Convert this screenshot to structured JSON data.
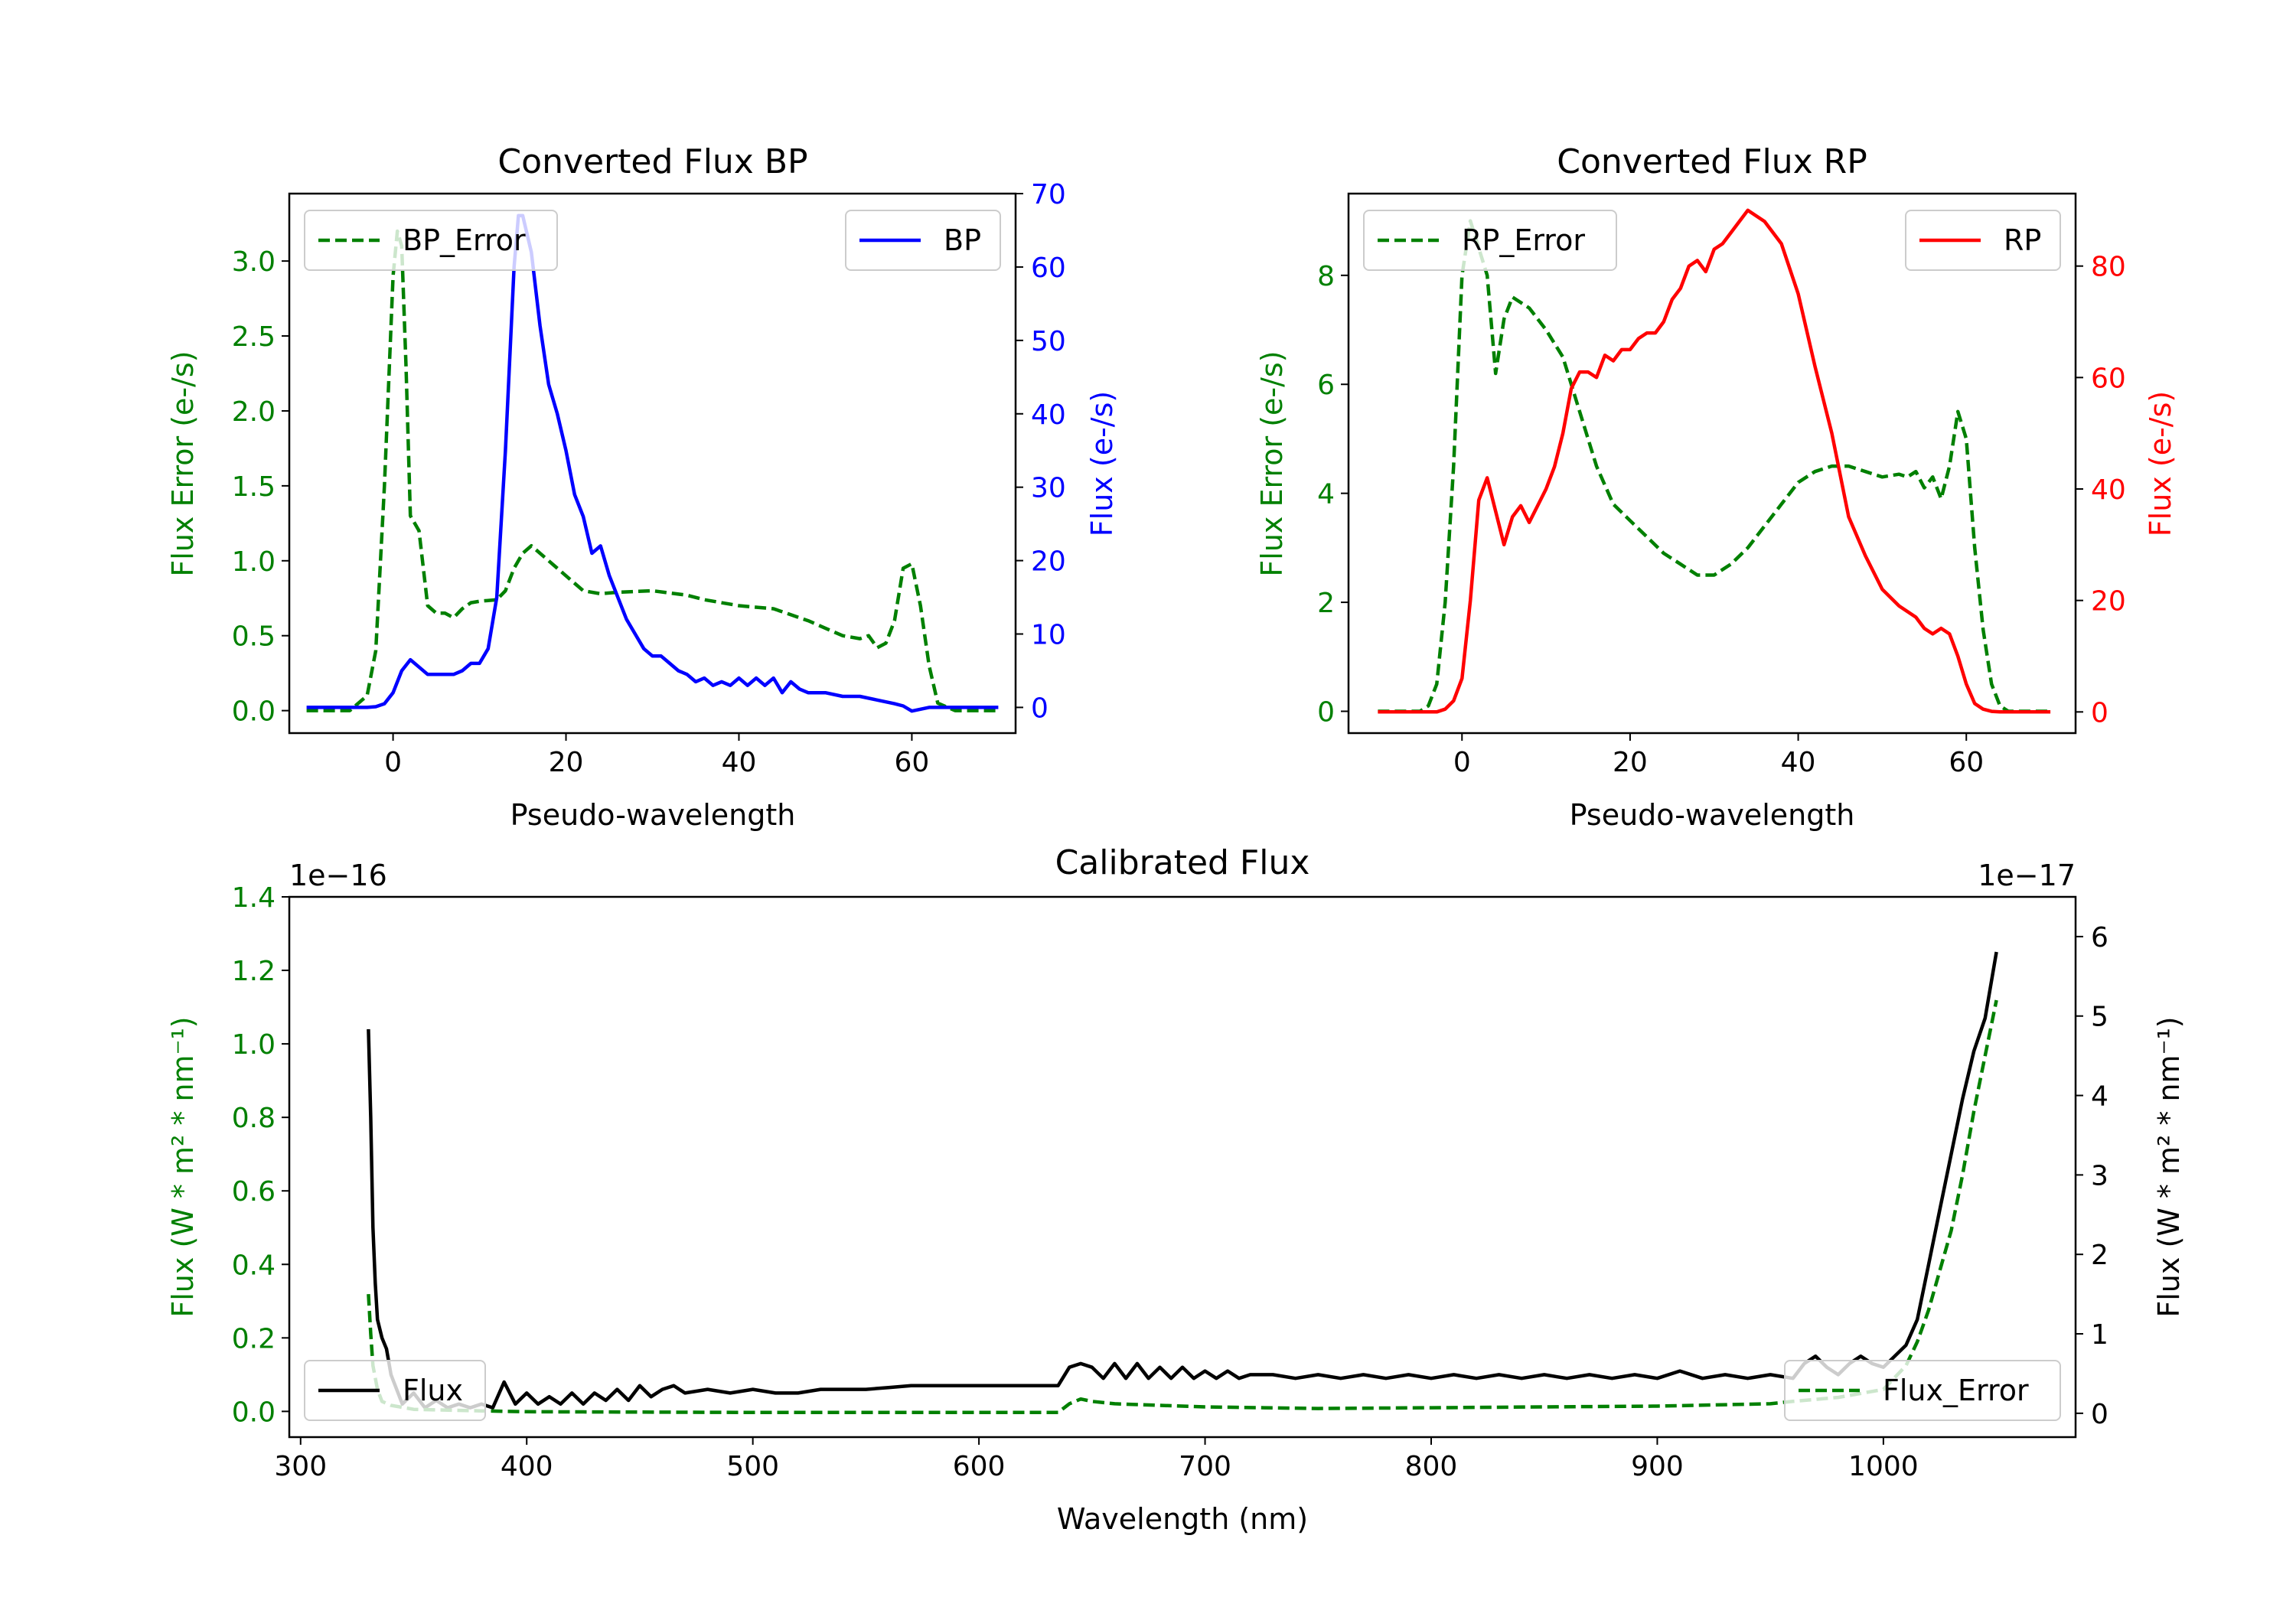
{
  "chart_data": [
    {
      "type": "line",
      "title": "Converted Flux BP",
      "xlabel": "Pseudo-wavelength",
      "ylabel_left": "Flux Error (e-/s)",
      "ylabel_right": "Flux (e-/s)",
      "xlim": [
        -12,
        72
      ],
      "ylim_left": [
        -0.15,
        3.45
      ],
      "ylim_right": [
        -3.5,
        70
      ],
      "xticks": [
        0,
        20,
        40,
        60
      ],
      "yticks_left": [
        0.0,
        0.5,
        1.0,
        1.5,
        2.0,
        2.5,
        3.0
      ],
      "yticks_right": [
        0,
        10,
        20,
        30,
        40,
        50,
        60,
        70
      ],
      "left_color": "#008000",
      "right_color": "#0000ff",
      "legend_left": {
        "label": "BP_Error",
        "position": "upper left"
      },
      "legend_right": {
        "label": "BP",
        "position": "upper right"
      },
      "series": [
        {
          "name": "BP_Error",
          "axis": "left",
          "style": "dashed",
          "color": "#008000",
          "x": [
            -10,
            -5,
            -3,
            -2,
            -1,
            0,
            0.5,
            1,
            1.5,
            2,
            3,
            4,
            5,
            6,
            7,
            8,
            9,
            10,
            12,
            13,
            14,
            15,
            16,
            18,
            20,
            22,
            24,
            26,
            30,
            34,
            36,
            40,
            44,
            48,
            52,
            54,
            55,
            56,
            57,
            58,
            59,
            60,
            61,
            62,
            63,
            65,
            70
          ],
          "y": [
            0.0,
            0.0,
            0.1,
            0.4,
            1.5,
            2.9,
            3.2,
            3.1,
            2.3,
            1.3,
            1.2,
            0.7,
            0.65,
            0.65,
            0.62,
            0.68,
            0.72,
            0.73,
            0.74,
            0.8,
            0.95,
            1.05,
            1.1,
            1.0,
            0.9,
            0.8,
            0.78,
            0.79,
            0.8,
            0.77,
            0.74,
            0.7,
            0.68,
            0.6,
            0.5,
            0.48,
            0.5,
            0.42,
            0.45,
            0.6,
            0.95,
            0.98,
            0.7,
            0.3,
            0.05,
            0.0,
            0.0
          ]
        },
        {
          "name": "BP",
          "axis": "right",
          "style": "solid",
          "color": "#0000ff",
          "x": [
            -10,
            -5,
            -3,
            -2,
            -1,
            0,
            1,
            2,
            3,
            4,
            5,
            6,
            7,
            8,
            9,
            10,
            11,
            12,
            13,
            14,
            14.5,
            15,
            16,
            17,
            18,
            19,
            20,
            21,
            22,
            23,
            24,
            25,
            26,
            27,
            28,
            29,
            30,
            31,
            32,
            33,
            34,
            35,
            36,
            37,
            38,
            39,
            40,
            41,
            42,
            43,
            44,
            45,
            46,
            47,
            48,
            50,
            52,
            54,
            56,
            58,
            59,
            60,
            62,
            65,
            70
          ],
          "y": [
            0.0,
            0.0,
            0.0,
            0.1,
            0.5,
            2.0,
            5.0,
            6.5,
            5.5,
            4.5,
            4.5,
            4.5,
            4.5,
            5.0,
            6.0,
            6.0,
            8.0,
            15.0,
            35.0,
            60.0,
            67.0,
            67.0,
            62.0,
            52.0,
            44.0,
            40.0,
            35.0,
            29.0,
            26.0,
            21.0,
            22.0,
            18.0,
            15.0,
            12.0,
            10.0,
            8.0,
            7.0,
            7.0,
            6.0,
            5.0,
            4.5,
            3.5,
            4.0,
            3.0,
            3.5,
            3.0,
            4.0,
            3.0,
            4.0,
            3.0,
            4.0,
            2.0,
            3.5,
            2.5,
            2.0,
            2.0,
            1.5,
            1.5,
            1.0,
            0.5,
            0.2,
            -0.5,
            0.0,
            0.0,
            0.0
          ]
        }
      ]
    },
    {
      "type": "line",
      "title": "Converted Flux RP",
      "xlabel": "Pseudo-wavelength",
      "ylabel_left": "Flux Error (e-/s)",
      "ylabel_right": "Flux (e-/s)",
      "xlim": [
        -13.5,
        73
      ],
      "ylim_left": [
        -0.4,
        9.5
      ],
      "ylim_right": [
        -3.8,
        93
      ],
      "xticks": [
        0,
        20,
        40,
        60
      ],
      "yticks_left": [
        0,
        2,
        4,
        6,
        8
      ],
      "yticks_right": [
        0,
        20,
        40,
        60,
        80
      ],
      "left_color": "#008000",
      "right_color": "#ff0000",
      "legend_left": {
        "label": "RP_Error",
        "position": "upper left"
      },
      "legend_right": {
        "label": "RP",
        "position": "upper right"
      },
      "series": [
        {
          "name": "RP_Error",
          "axis": "left",
          "style": "dashed",
          "color": "#008000",
          "x": [
            -10,
            -5,
            -4,
            -3,
            -2,
            -1,
            0,
            1,
            2,
            3,
            4,
            5,
            6,
            7,
            8,
            10,
            12,
            14,
            16,
            18,
            20,
            22,
            24,
            26,
            28,
            30,
            32,
            34,
            36,
            38,
            40,
            42,
            44,
            46,
            48,
            50,
            52,
            53,
            54,
            55,
            56,
            57,
            58,
            59,
            60,
            61,
            62,
            63,
            64,
            65,
            70
          ],
          "y": [
            0.0,
            0.0,
            0.1,
            0.5,
            2.0,
            4.5,
            8.0,
            9.0,
            8.5,
            8.0,
            6.2,
            7.2,
            7.6,
            7.5,
            7.4,
            7.0,
            6.5,
            5.5,
            4.5,
            3.8,
            3.5,
            3.2,
            2.9,
            2.7,
            2.5,
            2.5,
            2.7,
            3.0,
            3.4,
            3.8,
            4.2,
            4.4,
            4.5,
            4.5,
            4.4,
            4.3,
            4.35,
            4.3,
            4.4,
            4.1,
            4.3,
            3.9,
            4.5,
            5.5,
            5.0,
            3.0,
            1.5,
            0.5,
            0.1,
            0.0,
            0.0
          ]
        },
        {
          "name": "RP",
          "axis": "right",
          "style": "solid",
          "color": "#ff0000",
          "x": [
            -10,
            -3,
            -2,
            -1,
            0,
            1,
            2,
            3,
            4,
            5,
            6,
            7,
            8,
            9,
            10,
            11,
            12,
            13,
            14,
            15,
            16,
            17,
            18,
            19,
            20,
            21,
            22,
            23,
            24,
            25,
            26,
            27,
            28,
            29,
            30,
            31,
            32,
            33,
            34,
            35,
            36,
            38,
            40,
            42,
            44,
            46,
            48,
            50,
            52,
            54,
            55,
            56,
            57,
            58,
            59,
            60,
            61,
            62,
            63,
            64,
            65,
            70
          ],
          "y": [
            0,
            0,
            0.5,
            2.0,
            6.0,
            20.0,
            38.0,
            42.0,
            36.0,
            30.0,
            35.0,
            37.0,
            34.0,
            37.0,
            40.0,
            44.0,
            50.0,
            58.0,
            61.0,
            61.0,
            60.0,
            64.0,
            63.0,
            65.0,
            65.0,
            67.0,
            68.0,
            68.0,
            70.0,
            74.0,
            76.0,
            80.0,
            81.0,
            79.0,
            83.0,
            84.0,
            86.0,
            88.0,
            90.0,
            89.0,
            88.0,
            84.0,
            75.0,
            62.0,
            50.0,
            35.0,
            28.0,
            22.0,
            19.0,
            17.0,
            15.0,
            14.0,
            15.0,
            14.0,
            10.0,
            5.0,
            1.5,
            0.5,
            0.1,
            0,
            0,
            0
          ]
        }
      ]
    },
    {
      "type": "line",
      "title": "Calibrated Flux",
      "xlabel": "Wavelength (nm)",
      "ylabel_left": "Flux (W * m² * nm⁻¹)",
      "ylabel_right": "Flux (W * m² * nm⁻¹)",
      "xlim": [
        295,
        1085
      ],
      "ylim_left": [
        -0.07,
        1.4
      ],
      "ylim_right": [
        -0.3,
        6.5
      ],
      "xticks": [
        300,
        400,
        500,
        600,
        700,
        800,
        900,
        1000
      ],
      "yticks_left": [
        0.0,
        0.2,
        0.4,
        0.6,
        0.8,
        1.0,
        1.2,
        1.4
      ],
      "yticks_right": [
        0,
        1,
        2,
        3,
        4,
        5,
        6
      ],
      "offset_left": "1e−16",
      "offset_right": "1e−17",
      "left_color": "#008000",
      "right_color": "#000000",
      "legend_left": {
        "label": "Flux",
        "position": "lower left"
      },
      "legend_right": {
        "label": "Flux_Error",
        "position": "lower right"
      },
      "series": [
        {
          "name": "Flux",
          "axis": "left",
          "style": "solid",
          "color": "#000000",
          "x": [
            330,
            331,
            332,
            333,
            334,
            336,
            338,
            340,
            345,
            350,
            355,
            360,
            365,
            370,
            375,
            380,
            385,
            390,
            395,
            400,
            405,
            410,
            415,
            420,
            425,
            430,
            435,
            440,
            445,
            450,
            455,
            460,
            465,
            470,
            480,
            490,
            500,
            510,
            520,
            530,
            540,
            550,
            560,
            570,
            580,
            590,
            600,
            610,
            620,
            630,
            635,
            640,
            645,
            650,
            655,
            660,
            665,
            670,
            675,
            680,
            685,
            690,
            695,
            700,
            705,
            710,
            715,
            720,
            730,
            740,
            750,
            760,
            770,
            780,
            790,
            800,
            810,
            820,
            830,
            840,
            850,
            860,
            870,
            880,
            890,
            900,
            910,
            920,
            930,
            940,
            950,
            960,
            965,
            970,
            975,
            980,
            985,
            990,
            995,
            1000,
            1005,
            1010,
            1015,
            1020,
            1025,
            1030,
            1035,
            1040,
            1045,
            1050
          ],
          "y": [
            1.04,
            0.8,
            0.5,
            0.35,
            0.25,
            0.2,
            0.17,
            0.1,
            0.02,
            0.05,
            0.01,
            0.03,
            0.01,
            0.02,
            0.01,
            0.02,
            0.01,
            0.08,
            0.02,
            0.05,
            0.02,
            0.04,
            0.02,
            0.05,
            0.02,
            0.05,
            0.03,
            0.06,
            0.03,
            0.07,
            0.04,
            0.06,
            0.07,
            0.05,
            0.06,
            0.05,
            0.06,
            0.05,
            0.05,
            0.06,
            0.06,
            0.06,
            0.065,
            0.07,
            0.07,
            0.07,
            0.07,
            0.07,
            0.07,
            0.07,
            0.07,
            0.12,
            0.13,
            0.12,
            0.09,
            0.13,
            0.09,
            0.13,
            0.09,
            0.12,
            0.09,
            0.12,
            0.09,
            0.11,
            0.09,
            0.11,
            0.09,
            0.1,
            0.1,
            0.09,
            0.1,
            0.09,
            0.1,
            0.09,
            0.1,
            0.09,
            0.1,
            0.09,
            0.1,
            0.09,
            0.1,
            0.09,
            0.1,
            0.09,
            0.1,
            0.09,
            0.11,
            0.09,
            0.1,
            0.09,
            0.1,
            0.09,
            0.13,
            0.15,
            0.12,
            0.1,
            0.13,
            0.15,
            0.13,
            0.12,
            0.15,
            0.18,
            0.25,
            0.4,
            0.55,
            0.7,
            0.85,
            0.98,
            1.07,
            1.25
          ]
        },
        {
          "name": "Flux_Error",
          "axis": "right",
          "style": "dashed",
          "color": "#008000",
          "x": [
            330,
            331,
            332,
            334,
            336,
            340,
            350,
            380,
            400,
            500,
            600,
            635,
            640,
            645,
            650,
            660,
            680,
            700,
            750,
            800,
            850,
            900,
            950,
            960,
            980,
            1000,
            1010,
            1015,
            1020,
            1025,
            1030,
            1035,
            1040,
            1045,
            1050
          ],
          "y": [
            1.5,
            1.0,
            0.6,
            0.3,
            0.15,
            0.1,
            0.05,
            0.03,
            0.02,
            0.01,
            0.01,
            0.01,
            0.12,
            0.18,
            0.15,
            0.12,
            0.1,
            0.08,
            0.06,
            0.07,
            0.08,
            0.09,
            0.12,
            0.15,
            0.2,
            0.3,
            0.6,
            0.9,
            1.3,
            1.8,
            2.3,
            3.0,
            3.8,
            4.5,
            5.2
          ]
        }
      ]
    }
  ]
}
